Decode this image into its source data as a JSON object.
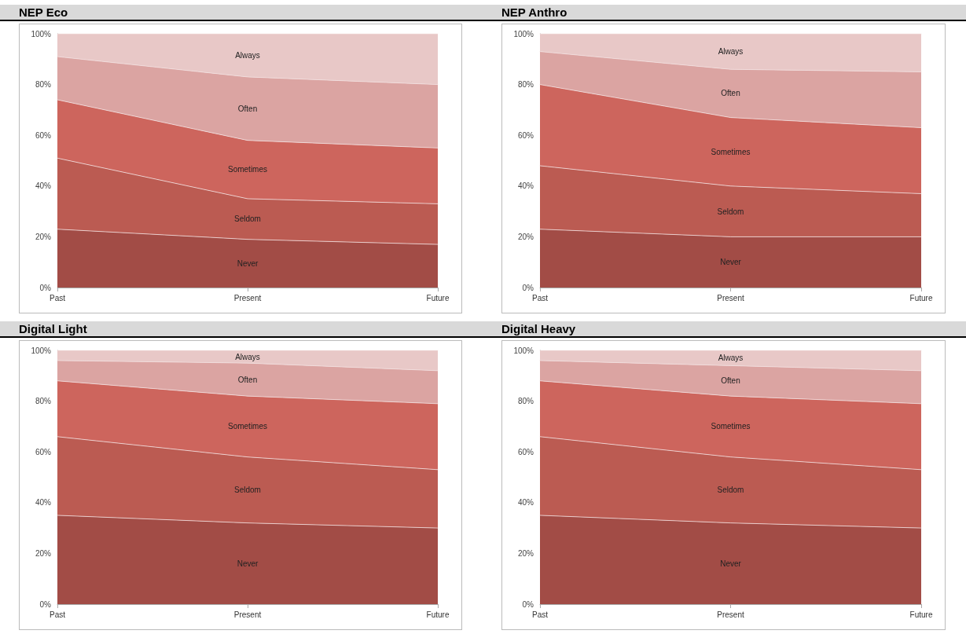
{
  "chart_data": [
    {
      "type": "area",
      "title": "NEP Eco",
      "stacked": true,
      "categories": [
        "Past",
        "Present",
        "Future"
      ],
      "ylim": [
        0,
        100
      ],
      "yticks": [
        {
          "value": 0,
          "label": "0%"
        },
        {
          "value": 20,
          "label": "20%"
        },
        {
          "value": 40,
          "label": "40%"
        },
        {
          "value": 60,
          "label": "60%"
        },
        {
          "value": 80,
          "label": "80%"
        },
        {
          "value": 100,
          "label": "100%"
        }
      ],
      "series": [
        {
          "name": "Never",
          "color": "#a24c46",
          "values": [
            23,
            19,
            17
          ]
        },
        {
          "name": "Seldom",
          "color": "#bb5b52",
          "values": [
            28,
            16,
            16
          ]
        },
        {
          "name": "Sometimes",
          "color": "#cd655d",
          "values": [
            23,
            23,
            22
          ]
        },
        {
          "name": "Often",
          "color": "#dba4a2",
          "values": [
            17,
            25,
            25
          ]
        },
        {
          "name": "Always",
          "color": "#e8c8c7",
          "values": [
            9,
            17,
            20
          ]
        }
      ]
    },
    {
      "type": "area",
      "title": "NEP Anthro",
      "stacked": true,
      "categories": [
        "Past",
        "Present",
        "Future"
      ],
      "ylim": [
        0,
        100
      ],
      "yticks": [
        {
          "value": 0,
          "label": "0%"
        },
        {
          "value": 20,
          "label": "20%"
        },
        {
          "value": 40,
          "label": "40%"
        },
        {
          "value": 60,
          "label": "60%"
        },
        {
          "value": 80,
          "label": "80%"
        },
        {
          "value": 100,
          "label": "100%"
        }
      ],
      "series": [
        {
          "name": "Never",
          "color": "#a24c46",
          "values": [
            23,
            20,
            20
          ]
        },
        {
          "name": "Seldom",
          "color": "#bb5b52",
          "values": [
            25,
            20,
            17
          ]
        },
        {
          "name": "Sometimes",
          "color": "#cd655d",
          "values": [
            32,
            27,
            26
          ]
        },
        {
          "name": "Often",
          "color": "#dba4a2",
          "values": [
            13,
            19,
            22
          ]
        },
        {
          "name": "Always",
          "color": "#e8c8c7",
          "values": [
            7,
            14,
            15
          ]
        }
      ]
    },
    {
      "type": "area",
      "title": "Digital Light",
      "stacked": true,
      "categories": [
        "Past",
        "Present",
        "Future"
      ],
      "ylim": [
        0,
        100
      ],
      "yticks": [
        {
          "value": 0,
          "label": "0%"
        },
        {
          "value": 20,
          "label": "20%"
        },
        {
          "value": 40,
          "label": "40%"
        },
        {
          "value": 60,
          "label": "60%"
        },
        {
          "value": 80,
          "label": "80%"
        },
        {
          "value": 100,
          "label": "100%"
        }
      ],
      "series": [
        {
          "name": "Never",
          "color": "#a24c46",
          "values": [
            35,
            32,
            30
          ]
        },
        {
          "name": "Seldom",
          "color": "#bb5b52",
          "values": [
            31,
            26,
            23
          ]
        },
        {
          "name": "Sometimes",
          "color": "#cd655d",
          "values": [
            22,
            24,
            26
          ]
        },
        {
          "name": "Often",
          "color": "#dba4a2",
          "values": [
            8,
            13,
            13
          ]
        },
        {
          "name": "Always",
          "color": "#e8c8c7",
          "values": [
            4,
            5,
            8
          ]
        }
      ]
    },
    {
      "type": "area",
      "title": "Digital Heavy",
      "stacked": true,
      "categories": [
        "Past",
        "Present",
        "Future"
      ],
      "ylim": [
        0,
        100
      ],
      "yticks": [
        {
          "value": 0,
          "label": "0%"
        },
        {
          "value": 20,
          "label": "20%"
        },
        {
          "value": 40,
          "label": "40%"
        },
        {
          "value": 60,
          "label": "60%"
        },
        {
          "value": 80,
          "label": "80%"
        },
        {
          "value": 100,
          "label": "100%"
        }
      ],
      "series": [
        {
          "name": "Never",
          "color": "#a24c46",
          "values": [
            35,
            32,
            30
          ]
        },
        {
          "name": "Seldom",
          "color": "#bb5b52",
          "values": [
            31,
            26,
            23
          ]
        },
        {
          "name": "Sometimes",
          "color": "#cd655d",
          "values": [
            22,
            24,
            26
          ]
        },
        {
          "name": "Often",
          "color": "#dba4a2",
          "values": [
            8,
            12,
            13
          ]
        },
        {
          "name": "Always",
          "color": "#e8c8c7",
          "values": [
            4,
            6,
            8
          ]
        }
      ]
    }
  ]
}
